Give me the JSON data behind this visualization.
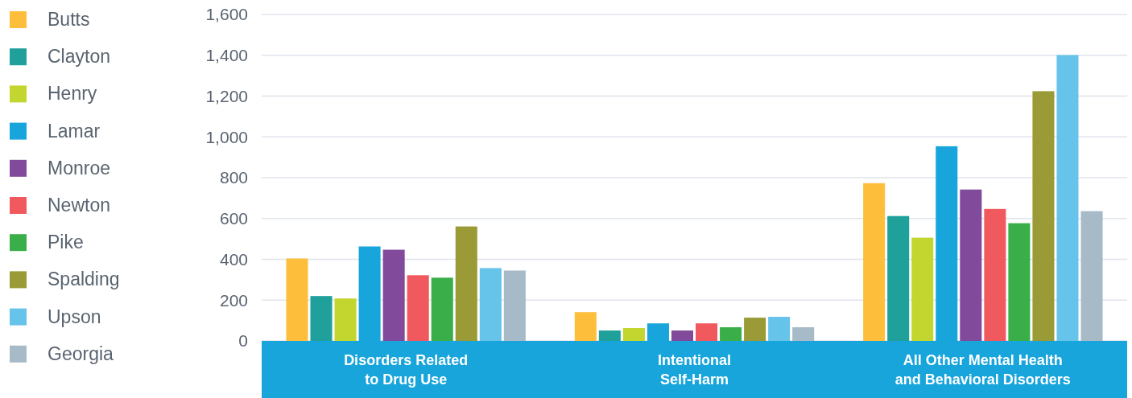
{
  "chart_data": {
    "type": "bar",
    "categories": [
      "Disorders Related to Drug Use",
      "Intentional Self-Harm",
      "All Other Mental Health and Behavioral Disorders"
    ],
    "series": [
      {
        "name": "Butts",
        "color": "#fdbe3c",
        "values": [
          404,
          141,
          773
        ]
      },
      {
        "name": "Clayton",
        "color": "#1fa09a",
        "values": [
          220,
          51,
          612
        ]
      },
      {
        "name": "Henry",
        "color": "#c3d52f",
        "values": [
          208,
          63,
          506
        ]
      },
      {
        "name": "Lamar",
        "color": "#17a5dc",
        "values": [
          463,
          86,
          954
        ]
      },
      {
        "name": "Monroe",
        "color": "#814a9b",
        "values": [
          447,
          51,
          742
        ]
      },
      {
        "name": "Newton",
        "color": "#f05a5e",
        "values": [
          322,
          86,
          647
        ]
      },
      {
        "name": "Pike",
        "color": "#3aaf49",
        "values": [
          310,
          67,
          577
        ]
      },
      {
        "name": "Spalding",
        "color": "#9a9a37",
        "values": [
          561,
          114,
          1224
        ]
      },
      {
        "name": "Upson",
        "color": "#66c3ea",
        "values": [
          357,
          118,
          1401
        ]
      },
      {
        "name": "Georgia",
        "color": "#a6bac8",
        "values": [
          345,
          67,
          636
        ]
      }
    ],
    "ylim": [
      0,
      1600
    ],
    "yticks": [
      0,
      {
        "value": 200,
        "label": "200"
      },
      {
        "value": 400,
        "label": "400"
      },
      {
        "value": 600,
        "label": "600"
      },
      {
        "value": 800,
        "label": "800"
      },
      {
        "value": 1000,
        "label": "1,000"
      },
      {
        "value": 1200,
        "label": "1,200"
      },
      {
        "value": 1400,
        "label": "1,400"
      },
      {
        "value": 1600,
        "label": "1,600"
      }
    ],
    "grid": "y",
    "legend": "left"
  }
}
